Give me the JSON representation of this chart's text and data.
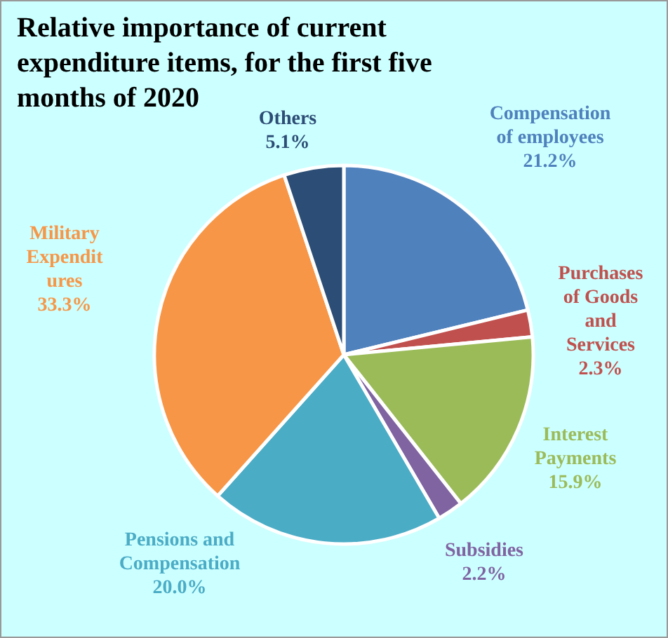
{
  "chart_data": {
    "type": "pie",
    "title": "Relative importance of current expenditure items, for the first five months of 2020",
    "categories": [
      "Compensation of employees",
      "Purchases of Goods and Services",
      "Interest Payments",
      "Subsidies",
      "Pensions and Compensation",
      "Military Expenditures",
      "Others"
    ],
    "values": [
      21.2,
      2.3,
      15.9,
      2.2,
      20.0,
      33.3,
      5.1
    ],
    "colors": [
      "#4f81bd",
      "#c0504d",
      "#9bbb59",
      "#8064a2",
      "#4bacc6",
      "#f79646",
      "#2c4d75"
    ],
    "value_labels": [
      "21.2%",
      "2.3%",
      "15.9%",
      "2.2%",
      "20.0%",
      "33.3%",
      "5.1%"
    ]
  }
}
